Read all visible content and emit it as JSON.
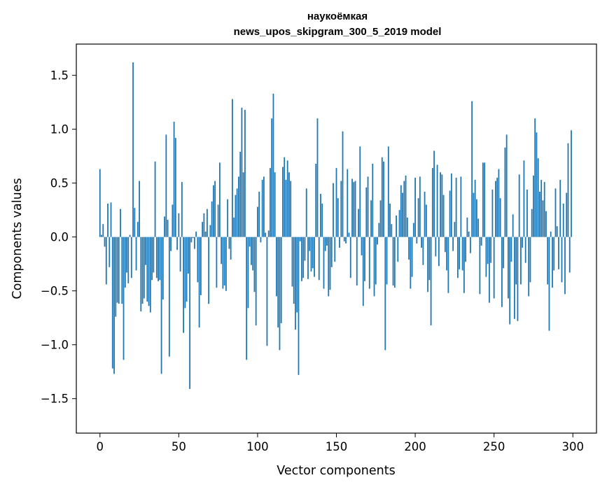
{
  "chart_data": {
    "type": "bar",
    "title": "наукоёмкая",
    "subtitle": "news_upos_skipgram_300_5_2019 model",
    "xlabel": "Vector components",
    "ylabel": "Components values",
    "xlim": [
      -15,
      315
    ],
    "ylim": [
      -1.82,
      1.79
    ],
    "xticks": [
      0,
      50,
      100,
      150,
      200,
      250,
      300
    ],
    "yticks": [
      -1.5,
      -1.0,
      -0.5,
      0.0,
      0.5,
      1.0,
      1.5
    ],
    "ytick_labels": [
      "−1.5",
      "−1.0",
      "−0.5",
      "0.0",
      "0.5",
      "1.0",
      "1.5"
    ],
    "grid": false,
    "bar_color": "#1f77b4",
    "values": [
      0.63,
      0.02,
      0.12,
      -0.09,
      -0.44,
      0.31,
      -0.28,
      0.32,
      -1.22,
      -1.27,
      -0.74,
      -0.61,
      -0.62,
      0.26,
      -0.62,
      -1.14,
      -0.47,
      -0.33,
      -0.43,
      0.02,
      -0.38,
      1.62,
      0.27,
      -0.31,
      0.14,
      0.52,
      -0.69,
      -0.62,
      -0.57,
      -0.26,
      -0.6,
      -0.64,
      -0.7,
      -0.4,
      -0.33,
      0.7,
      -0.38,
      -0.41,
      -0.4,
      -1.27,
      -0.58,
      0.19,
      0.95,
      0.16,
      -1.11,
      -0.13,
      0.3,
      1.07,
      0.92,
      -0.12,
      0.22,
      -0.32,
      0.51,
      -0.89,
      -0.66,
      -0.6,
      -0.34,
      -1.41,
      -0.05,
      -0.01,
      -0.11,
      0.05,
      -0.42,
      -0.84,
      -0.54,
      0.14,
      0.22,
      0.05,
      0.26,
      -0.62,
      0.11,
      0.33,
      0.48,
      0.52,
      -0.47,
      0.3,
      0.69,
      -0.25,
      -0.48,
      -0.45,
      -0.5,
      0.35,
      -0.11,
      -0.21,
      1.28,
      0.18,
      0.39,
      0.45,
      0.56,
      0.79,
      1.2,
      0.6,
      1.18,
      -1.14,
      -0.66,
      -0.09,
      -0.26,
      -0.31,
      -0.51,
      -0.82,
      0.28,
      0.42,
      -0.05,
      0.53,
      0.56,
      0.04,
      -1.01,
      0.06,
      0.64,
      1.1,
      1.33,
      0.6,
      -0.55,
      -0.84,
      -1.05,
      -0.8,
      0.65,
      0.74,
      0.53,
      0.71,
      0.6,
      0.52,
      -0.46,
      -0.62,
      -0.86,
      -0.7,
      -1.28,
      -0.04,
      -0.41,
      -0.38,
      -0.22,
      0.45,
      -0.39,
      -0.13,
      -0.32,
      -0.29,
      -0.37,
      0.68,
      1.1,
      -0.4,
      0.4,
      0.31,
      -0.48,
      -0.13,
      -0.08,
      -0.55,
      -0.49,
      -0.28,
      0.5,
      -0.23,
      0.64,
      0.36,
      -0.1,
      0.52,
      0.98,
      -0.04,
      -0.06,
      0.63,
      0.04,
      -0.38,
      0.54,
      0.51,
      0.52,
      -0.45,
      0.26,
      0.84,
      -0.17,
      -0.64,
      -0.41,
      0.46,
      0.56,
      -0.48,
      0.34,
      0.68,
      -0.55,
      -0.44,
      -0.07,
      0.13,
      0.34,
      0.74,
      0.7,
      -1.05,
      -0.44,
      0.84,
      0.31,
      0.12,
      -0.45,
      -0.47,
      0.2,
      -0.23,
      0.25,
      0.48,
      0.41,
      0.52,
      0.57,
      0.18,
      -0.21,
      -0.48,
      -0.37,
      0.13,
      0.55,
      -0.06,
      0.36,
      0.56,
      -0.1,
      -0.26,
      0.42,
      0.3,
      -0.51,
      -0.4,
      -0.82,
      0.64,
      0.8,
      -0.18,
      0.67,
      -0.27,
      0.6,
      0.58,
      0.39,
      -0.14,
      -0.31,
      -0.52,
      0.43,
      0.59,
      -0.13,
      0.14,
      0.55,
      -0.38,
      -0.3,
      0.56,
      -0.31,
      -0.52,
      -0.23,
      0.18,
      0.05,
      -0.15,
      1.26,
      0.41,
      0.53,
      0.35,
      0.17,
      -0.53,
      -0.08,
      0.69,
      0.69,
      -0.37,
      -0.25,
      -0.61,
      -0.24,
      0.44,
      -0.57,
      0.52,
      0.55,
      0.63,
      0.36,
      -0.65,
      -0.29,
      0.83,
      0.95,
      -0.57,
      -0.81,
      -0.23,
      0.21,
      -0.76,
      -0.44,
      -0.78,
      0.58,
      -0.44,
      -0.1,
      0.71,
      -0.24,
      0.44,
      -0.55,
      -0.42,
      0.26,
      0.57,
      1.1,
      0.97,
      0.73,
      0.42,
      0.53,
      0.34,
      0.51,
      0.24,
      -0.44,
      -0.87,
      0.05,
      -0.47,
      -0.31,
      0.45,
      0.1,
      -0.3,
      0.53,
      -0.42,
      0.31,
      -0.53,
      0.41,
      0.87,
      -0.33,
      0.99
    ]
  }
}
